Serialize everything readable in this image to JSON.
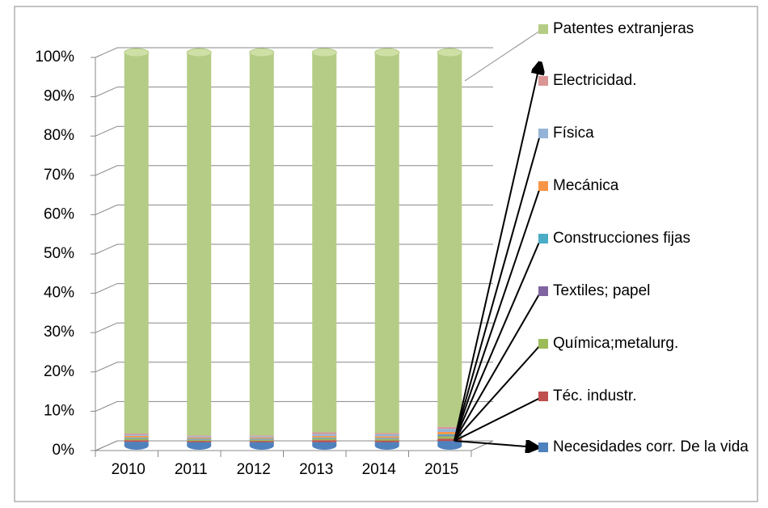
{
  "chart_data": {
    "type": "bar3d_stacked",
    "categories": [
      "2010",
      "2011",
      "2012",
      "2013",
      "2014",
      "2015"
    ],
    "series": [
      {
        "name": "Patentes extranjeras",
        "color": "#b5cc86",
        "values": [
          96.9,
          97.4,
          97.4,
          96.6,
          96.8,
          95.2
        ]
      },
      {
        "name": "Electricidad.",
        "color": "#d99694",
        "values": [
          0.3,
          0.2,
          0.2,
          0.4,
          0.3,
          0.5
        ]
      },
      {
        "name": "Física",
        "color": "#95b3d7",
        "values": [
          0.3,
          0.3,
          0.3,
          0.5,
          0.5,
          0.8
        ]
      },
      {
        "name": "Mecánica",
        "color": "#f79646",
        "values": [
          0.4,
          0.3,
          0.3,
          0.4,
          0.4,
          0.6
        ]
      },
      {
        "name": "Construcciones fijas",
        "color": "#4bacc6",
        "values": [
          0.2,
          0.2,
          0.2,
          0.2,
          0.2,
          0.3
        ]
      },
      {
        "name": "Textiles; papel",
        "color": "#8064a2",
        "values": [
          0.1,
          0.1,
          0.1,
          0.1,
          0.1,
          0.2
        ]
      },
      {
        "name": "Química;metalurg.",
        "color": "#9bbb59",
        "values": [
          0.4,
          0.3,
          0.3,
          0.4,
          0.4,
          0.6
        ]
      },
      {
        "name": "Téc. industr.",
        "color": "#c0504d",
        "values": [
          0.4,
          0.3,
          0.3,
          0.5,
          0.4,
          0.6
        ]
      },
      {
        "name": "Necesidades corr. De la vida",
        "color": "#4f81bd",
        "values": [
          1.0,
          0.9,
          0.9,
          0.9,
          0.9,
          1.2
        ]
      }
    ],
    "ylim": [
      0,
      100
    ],
    "yticks": [
      {
        "value": 0,
        "label": "0%"
      },
      {
        "value": 10,
        "label": "10%"
      },
      {
        "value": 20,
        "label": "20%"
      },
      {
        "value": 30,
        "label": "30%"
      },
      {
        "value": 40,
        "label": "40%"
      },
      {
        "value": 50,
        "label": "50%"
      },
      {
        "value": 60,
        "label": "60%"
      },
      {
        "value": 70,
        "label": "70%"
      },
      {
        "value": 80,
        "label": "80%"
      },
      {
        "value": 90,
        "label": "90%"
      },
      {
        "value": 100,
        "label": "100%"
      }
    ],
    "grid": true
  }
}
